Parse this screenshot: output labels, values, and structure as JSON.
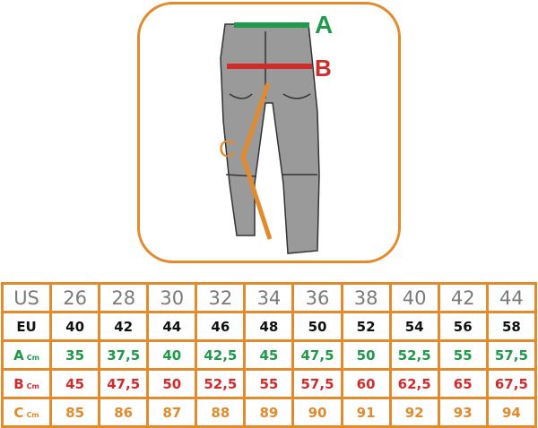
{
  "figure": {
    "labels": {
      "a": "A",
      "b": "B",
      "c": "C"
    },
    "colors": {
      "a": "#1e9a48",
      "b": "#d42a2a",
      "c": "#e38a2d",
      "border": "#e38a2d"
    }
  },
  "table": {
    "unit": "Cm",
    "rows": [
      {
        "label": "US",
        "values": [
          "26",
          "28",
          "30",
          "32",
          "34",
          "36",
          "38",
          "40",
          "42",
          "44"
        ]
      },
      {
        "label": "EU",
        "values": [
          "40",
          "42",
          "44",
          "46",
          "48",
          "50",
          "52",
          "54",
          "56",
          "58"
        ]
      },
      {
        "label": "A",
        "values": [
          "35",
          "37,5",
          "40",
          "42,5",
          "45",
          "47,5",
          "50",
          "52,5",
          "55",
          "57,5"
        ]
      },
      {
        "label": "B",
        "values": [
          "45",
          "47,5",
          "50",
          "52,5",
          "55",
          "57,5",
          "60",
          "62,5",
          "65",
          "67,5"
        ]
      },
      {
        "label": "C",
        "values": [
          "85",
          "86",
          "87",
          "88",
          "89",
          "90",
          "91",
          "92",
          "93",
          "94"
        ]
      }
    ]
  }
}
